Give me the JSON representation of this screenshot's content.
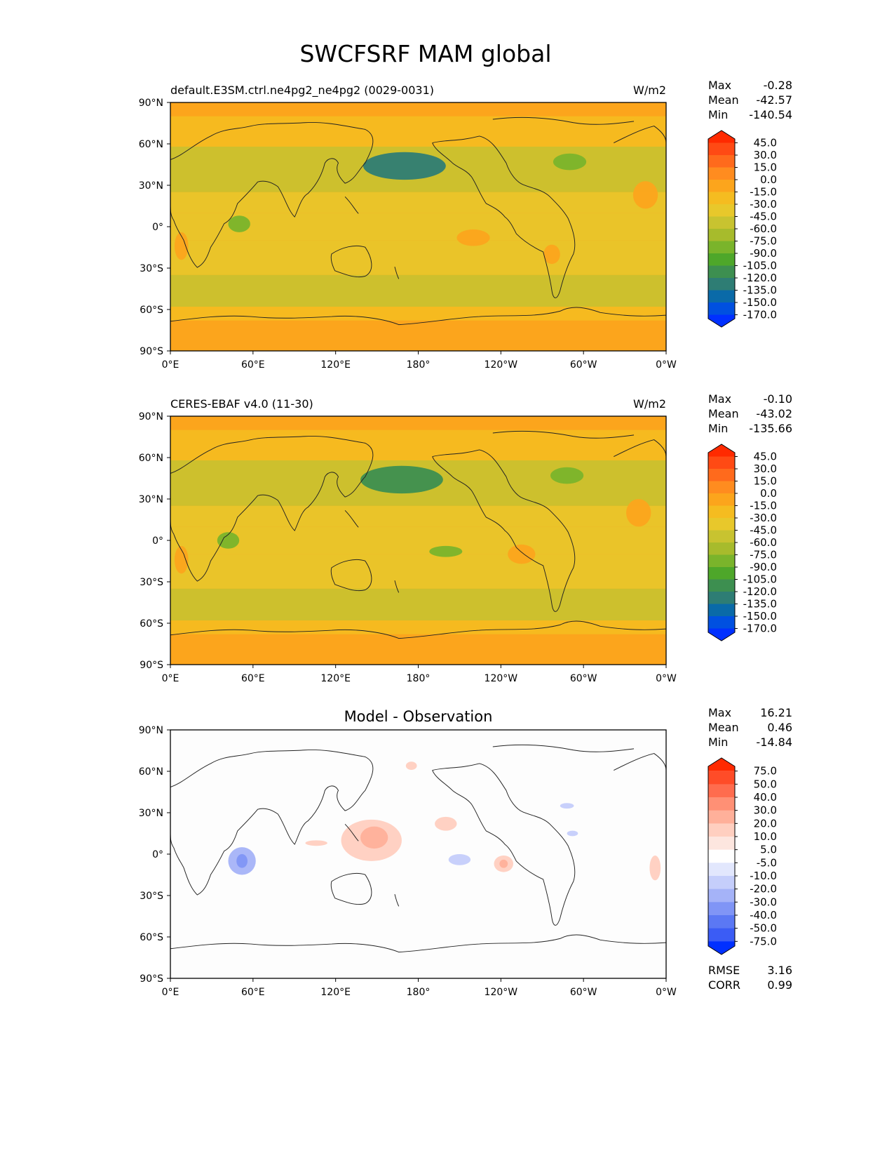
{
  "title": "SWCFSRF MAM global",
  "lat_ticks": [
    "90°N",
    "60°N",
    "30°N",
    "0°",
    "30°S",
    "60°S",
    "90°S"
  ],
  "lon_ticks": [
    "0°E",
    "60°E",
    "120°E",
    "180°",
    "120°W",
    "60°W",
    "0°W"
  ],
  "chart_data": [
    {
      "type": "heatmap",
      "title": "default.E3SM.ctrl.ne4pg2_ne4pg2 (0029-0031)",
      "units": "W/m2",
      "stats": [
        {
          "label": "Max",
          "value": "-0.28"
        },
        {
          "label": "Mean",
          "value": "-42.57"
        },
        {
          "label": "Min",
          "value": "-140.54"
        }
      ],
      "colorbar": {
        "levels": [
          "45.0",
          "30.0",
          "15.0",
          "0.0",
          "-15.0",
          "-30.0",
          "-45.0",
          "-60.0",
          "-75.0",
          "-90.0",
          "-105.0",
          "-120.0",
          "-135.0",
          "-150.0",
          "-170.0"
        ],
        "colors": [
          "#ff2a00",
          "#ff4a14",
          "#ff6a1c",
          "#ff8c1f",
          "#fca51c",
          "#f5bc20",
          "#e8c82b",
          "#c8c330",
          "#a7bb2c",
          "#7ab42b",
          "#4ea72a",
          "#3d8f50",
          "#2e7d74",
          "#0a6aa8",
          "#0050e0",
          "#0030ff"
        ]
      },
      "blobs": [
        {
          "lon": 170,
          "lat": 44,
          "rx": 30,
          "ry": 10,
          "level": 12
        },
        {
          "lon": 50,
          "lat": 2,
          "rx": 8,
          "ry": 6,
          "level": 9
        },
        {
          "lon": -70,
          "lat": 47,
          "rx": 12,
          "ry": 6,
          "level": 9
        },
        {
          "lon": -15,
          "lat": 23,
          "rx": 9,
          "ry": 10,
          "level": 4
        },
        {
          "lon": -140,
          "lat": -8,
          "rx": 12,
          "ry": 6,
          "level": 4
        },
        {
          "lon": 8,
          "lat": -14,
          "rx": 5,
          "ry": 10,
          "level": 4
        },
        {
          "lon": -83,
          "lat": -20,
          "rx": 6,
          "ry": 7,
          "level": 4
        }
      ]
    },
    {
      "type": "heatmap",
      "title": "CERES-EBAF v4.0 (11-30)",
      "units": "W/m2",
      "stats": [
        {
          "label": "Max",
          "value": "-0.10"
        },
        {
          "label": "Mean",
          "value": "-43.02"
        },
        {
          "label": "Min",
          "value": "-135.66"
        }
      ],
      "colorbar": {
        "levels": [
          "45.0",
          "30.0",
          "15.0",
          "0.0",
          "-15.0",
          "-30.0",
          "-45.0",
          "-60.0",
          "-75.0",
          "-90.0",
          "-105.0",
          "-120.0",
          "-135.0",
          "-150.0",
          "-170.0"
        ],
        "colors": [
          "#ff2a00",
          "#ff4a14",
          "#ff6a1c",
          "#ff8c1f",
          "#fca51c",
          "#f5bc20",
          "#e8c82b",
          "#c8c330",
          "#a7bb2c",
          "#7ab42b",
          "#4ea72a",
          "#3d8f50",
          "#2e7d74",
          "#0a6aa8",
          "#0050e0",
          "#0030ff"
        ]
      },
      "blobs": [
        {
          "lon": 168,
          "lat": 44,
          "rx": 30,
          "ry": 10,
          "level": 11
        },
        {
          "lon": 42,
          "lat": 0,
          "rx": 8,
          "ry": 6,
          "level": 9
        },
        {
          "lon": -72,
          "lat": 47,
          "rx": 12,
          "ry": 6,
          "level": 9
        },
        {
          "lon": -160,
          "lat": -8,
          "rx": 12,
          "ry": 4,
          "level": 9
        },
        {
          "lon": -20,
          "lat": 20,
          "rx": 9,
          "ry": 10,
          "level": 4
        },
        {
          "lon": -105,
          "lat": -10,
          "rx": 10,
          "ry": 7,
          "level": 4
        },
        {
          "lon": 8,
          "lat": -14,
          "rx": 5,
          "ry": 10,
          "level": 4
        }
      ]
    },
    {
      "type": "heatmap",
      "title": "Model - Observation",
      "units": "",
      "stats": [
        {
          "label": "Max",
          "value": "16.21"
        },
        {
          "label": "Mean",
          "value": "0.46"
        },
        {
          "label": "Min",
          "value": "-14.84"
        }
      ],
      "colorbar": {
        "levels": [
          "75.0",
          "50.0",
          "40.0",
          "30.0",
          "20.0",
          "10.0",
          "5.0",
          "-5.0",
          "-10.0",
          "-20.0",
          "-30.0",
          "-40.0",
          "-50.0",
          "-75.0"
        ],
        "colors": [
          "#ff2a00",
          "#ff4c28",
          "#ff6c4e",
          "#ff9075",
          "#ffb09a",
          "#ffcfc0",
          "#fde6df",
          "#ffffff",
          "#e2e7fd",
          "#c5cefb",
          "#a5b3f8",
          "#8095f6",
          "#5b78f4",
          "#3b5cf5",
          "#0030ff"
        ]
      },
      "extra_stats": [
        {
          "label": "RMSE",
          "value": "3.16"
        },
        {
          "label": "CORR",
          "value": "0.99"
        }
      ],
      "blobs": [
        {
          "lon": 146,
          "lat": 10,
          "rx": 22,
          "ry": 15,
          "level": 5
        },
        {
          "lon": 148,
          "lat": 12,
          "rx": 10,
          "ry": 8,
          "level": 4
        },
        {
          "lon": 52,
          "lat": -5,
          "rx": 10,
          "ry": 10,
          "level": 10
        },
        {
          "lon": 52,
          "lat": -5,
          "rx": 4,
          "ry": 5,
          "level": 11
        },
        {
          "lon": -150,
          "lat": -4,
          "rx": 8,
          "ry": 4,
          "level": 9
        },
        {
          "lon": -118,
          "lat": -7,
          "rx": 7,
          "ry": 6,
          "level": 5
        },
        {
          "lon": -118,
          "lat": -7,
          "rx": 3,
          "ry": 3,
          "level": 4
        },
        {
          "lon": -160,
          "lat": 22,
          "rx": 8,
          "ry": 5,
          "level": 5
        },
        {
          "lon": 175,
          "lat": 64,
          "rx": 4,
          "ry": 3,
          "level": 5
        },
        {
          "lon": -8,
          "lat": -10,
          "rx": 4,
          "ry": 9,
          "level": 5
        },
        {
          "lon": -68,
          "lat": 15,
          "rx": 4,
          "ry": 2,
          "level": 9
        },
        {
          "lon": -72,
          "lat": 35,
          "rx": 5,
          "ry": 2,
          "level": 9
        },
        {
          "lon": 106,
          "lat": 8,
          "rx": 8,
          "ry": 2,
          "level": 5
        }
      ]
    }
  ]
}
